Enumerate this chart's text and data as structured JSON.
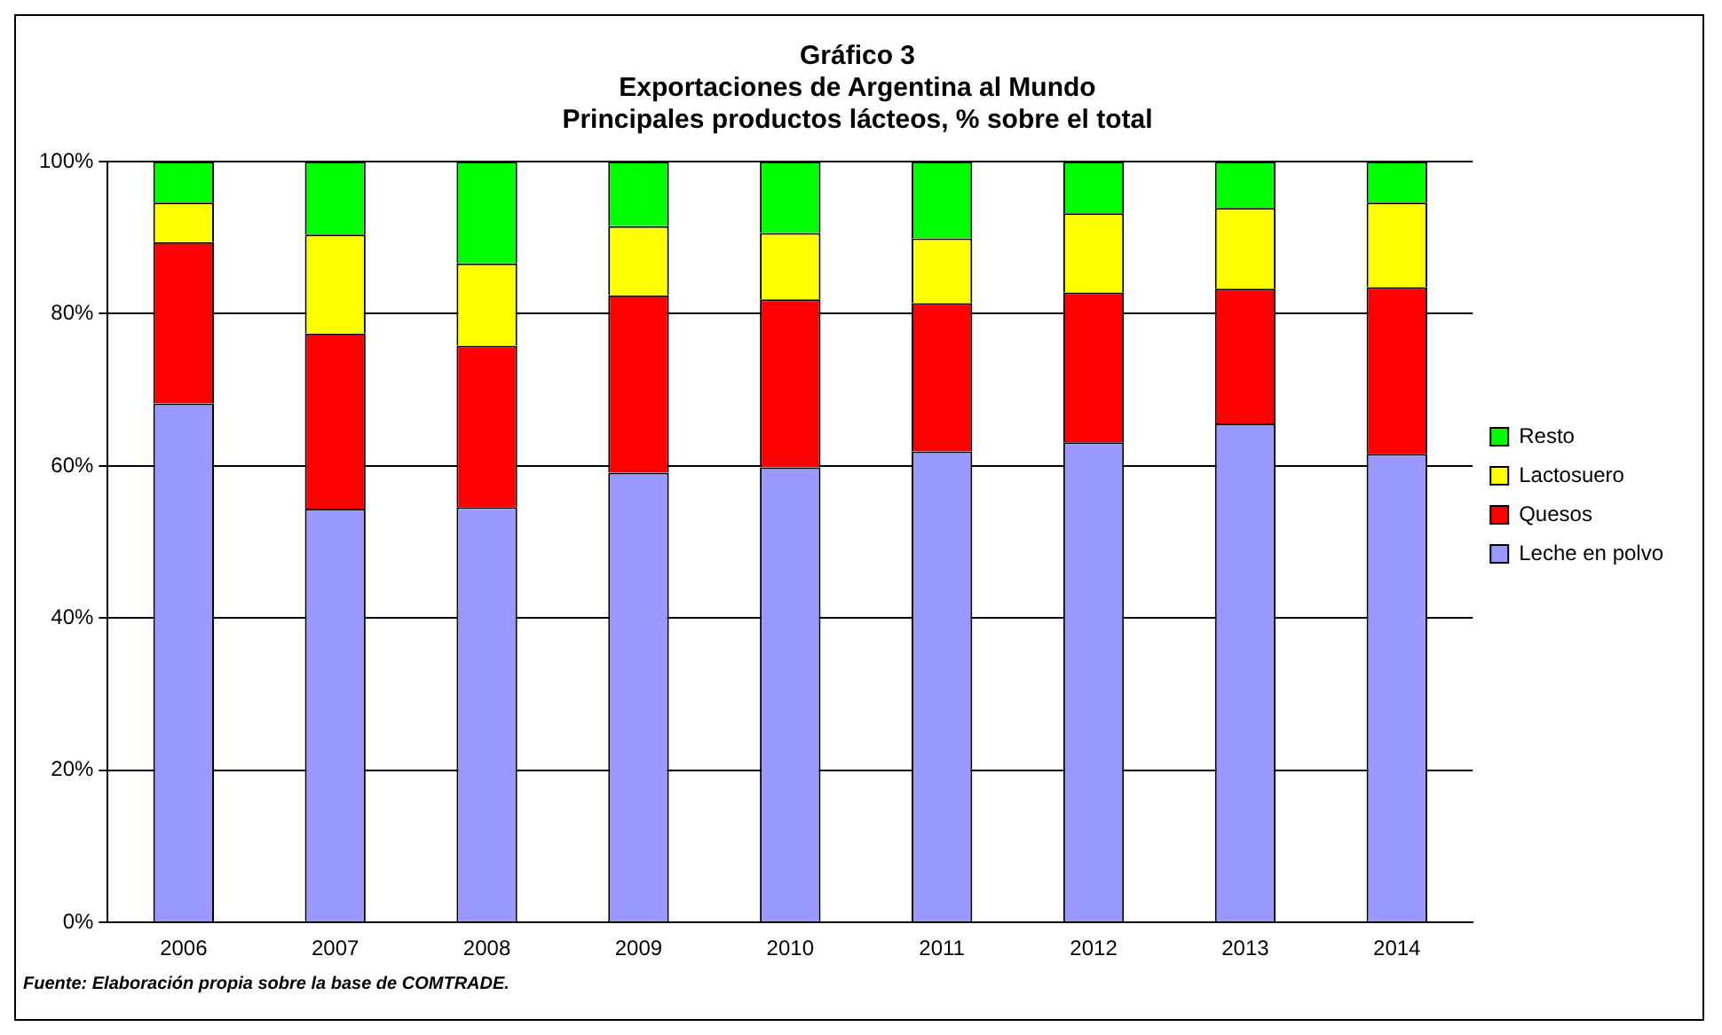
{
  "chart_data": {
    "type": "bar",
    "title": "Gráfico 3\nExportaciones de Argentina al Mundo\nPrincipales productos lácteos, % sobre el total",
    "categories": [
      "2006",
      "2007",
      "2008",
      "2009",
      "2010",
      "2011",
      "2012",
      "2013",
      "2014"
    ],
    "series": [
      {
        "name": "Leche en polvo",
        "color": "#9999ff",
        "values": [
          68.2,
          54.4,
          54.6,
          59.1,
          59.8,
          61.9,
          63.1,
          65.6,
          61.6
        ]
      },
      {
        "name": "Quesos",
        "color": "#ff0000",
        "values": [
          21.2,
          23.0,
          21.2,
          23.3,
          22.1,
          19.5,
          19.7,
          17.7,
          21.9
        ]
      },
      {
        "name": "Lactosuero",
        "color": "#ffff00",
        "values": [
          5.2,
          13.0,
          10.8,
          9.1,
          8.7,
          8.5,
          10.4,
          10.6,
          11.1
        ]
      },
      {
        "name": "Resto",
        "color": "#00ff00",
        "values": [
          5.4,
          9.6,
          13.4,
          8.5,
          9.4,
          10.1,
          6.8,
          6.1,
          5.4
        ]
      }
    ],
    "stacked": true,
    "ylim": [
      0,
      100
    ],
    "yticks": [
      {
        "value": 0,
        "label": "0%"
      },
      {
        "value": 20,
        "label": "20%"
      },
      {
        "value": 40,
        "label": "40%"
      },
      {
        "value": 60,
        "label": "60%"
      },
      {
        "value": 80,
        "label": "80%"
      },
      {
        "value": 100,
        "label": "100%"
      }
    ],
    "grid": "y",
    "legend": "right",
    "annotations": [
      "Fuente: Elaboración propia sobre la base de COMTRADE."
    ]
  }
}
